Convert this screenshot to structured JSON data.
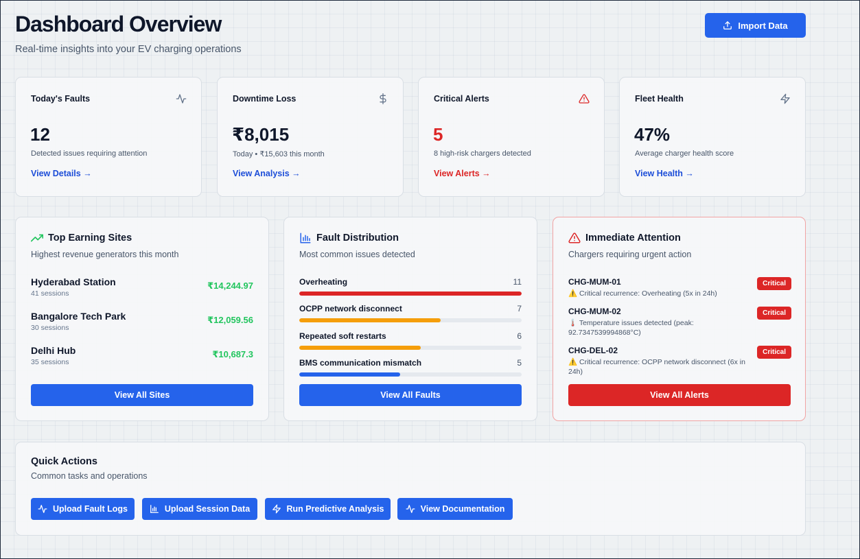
{
  "header": {
    "title": "Dashboard Overview",
    "subtitle": "Real-time insights into your EV charging operations",
    "import_label": "Import Data"
  },
  "stats": [
    {
      "title": "Today's Faults",
      "icon": "activity-icon",
      "value": "12",
      "desc": "Detected issues requiring attention",
      "link": "View Details →"
    },
    {
      "title": "Downtime Loss",
      "icon": "dollar-icon",
      "value": "₹8,015",
      "desc": "Today • ₹15,603 this month",
      "link": "View Analysis →"
    },
    {
      "title": "Critical Alerts",
      "icon": "alert-triangle-icon",
      "value": "5",
      "desc": "8 high-risk chargers detected",
      "link": "View Alerts →"
    },
    {
      "title": "Fleet Health",
      "icon": "zap-icon",
      "value": "47%",
      "desc": "Average charger health score",
      "link": "View Health →"
    }
  ],
  "sites": {
    "title": "Top Earning Sites",
    "subtitle": "Highest revenue generators this month",
    "items": [
      {
        "name": "Hyderabad Station",
        "sessions": "41 sessions",
        "revenue": "₹14,244.97"
      },
      {
        "name": "Bangalore Tech Park",
        "sessions": "30 sessions",
        "revenue": "₹12,059.56"
      },
      {
        "name": "Delhi Hub",
        "sessions": "35 sessions",
        "revenue": "₹10,687.3"
      }
    ],
    "button": "View All Sites"
  },
  "faults": {
    "title": "Fault Distribution",
    "subtitle": "Most common issues detected",
    "max": 11,
    "items": [
      {
        "label": "Overheating",
        "count": 11,
        "count_label": "11",
        "color": "#dc2626"
      },
      {
        "label": "OCPP network disconnect",
        "count": 7,
        "count_label": "7",
        "color": "#f59e0b"
      },
      {
        "label": "Repeated soft restarts",
        "count": 6,
        "count_label": "6",
        "color": "#f59e0b"
      },
      {
        "label": "BMS communication mismatch",
        "count": 5,
        "count_label": "5",
        "color": "#2563eb"
      }
    ],
    "button": "View All Faults"
  },
  "attention": {
    "title": "Immediate Attention",
    "subtitle": "Chargers requiring urgent action",
    "items": [
      {
        "id": "CHG-MUM-01",
        "icon": "⚠️",
        "message": "Critical recurrence: Overheating (5x in 24h)",
        "badge": "Critical"
      },
      {
        "id": "CHG-MUM-02",
        "icon": "🌡️",
        "message": "Temperature issues detected (peak: 92.7347539994868°C)",
        "badge": "Critical"
      },
      {
        "id": "CHG-DEL-02",
        "icon": "⚠️",
        "message": "Critical recurrence: OCPP network disconnect (6x in 24h)",
        "badge": "Critical"
      }
    ],
    "button": "View All Alerts"
  },
  "quick_actions": {
    "title": "Quick Actions",
    "subtitle": "Common tasks and operations",
    "buttons": [
      {
        "label": "Upload Fault Logs",
        "icon": "activity-icon"
      },
      {
        "label": "Upload Session Data",
        "icon": "bar-chart-icon"
      },
      {
        "label": "Run Predictive Analysis",
        "icon": "zap-icon"
      },
      {
        "label": "View Documentation",
        "icon": "activity-icon"
      }
    ]
  },
  "colors": {
    "primary": "#2563eb",
    "danger": "#dc2626",
    "success": "#22c55e",
    "warning": "#f59e0b"
  }
}
